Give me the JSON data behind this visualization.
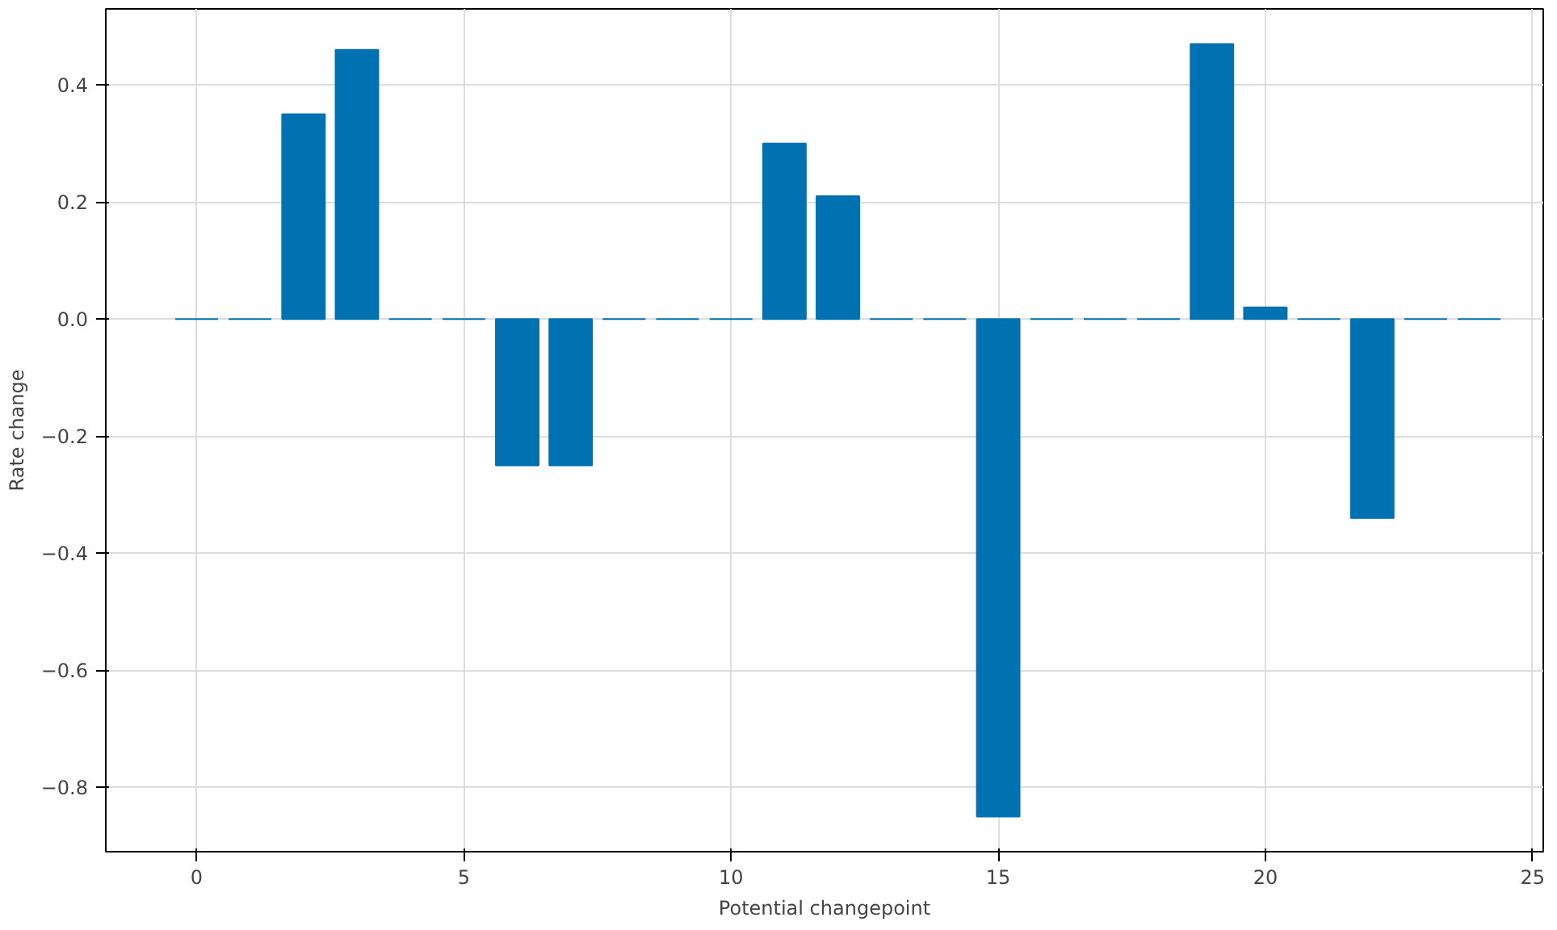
{
  "chart_data": {
    "type": "bar",
    "xlabel": "Potential changepoint",
    "ylabel": "Rate change",
    "x": [
      0,
      1,
      2,
      3,
      4,
      5,
      6,
      7,
      8,
      9,
      10,
      11,
      12,
      13,
      14,
      15,
      16,
      17,
      18,
      19,
      20,
      21,
      22,
      23,
      24
    ],
    "values": [
      0,
      0,
      0.35,
      0.46,
      0,
      0,
      -0.25,
      -0.25,
      0,
      0,
      0,
      0.3,
      0.21,
      0,
      0,
      -0.85,
      0,
      0,
      0,
      0.47,
      0.02,
      0,
      -0.34,
      0,
      0
    ],
    "color": "#0072b2",
    "xlim": [
      -1.7,
      25.2
    ],
    "ylim": [
      -0.91,
      0.53
    ],
    "xticks": [
      0,
      5,
      10,
      15,
      20,
      25
    ],
    "yticks": [
      {
        "value": -0.8,
        "label": "−0.8"
      },
      {
        "value": -0.6,
        "label": "−0.6"
      },
      {
        "value": -0.4,
        "label": "−0.4"
      },
      {
        "value": -0.2,
        "label": "−0.2"
      },
      {
        "value": 0,
        "label": "0.0"
      },
      {
        "value": 0.2,
        "label": "0.2"
      },
      {
        "value": 0.4,
        "label": "0.4"
      }
    ],
    "grid": true
  }
}
